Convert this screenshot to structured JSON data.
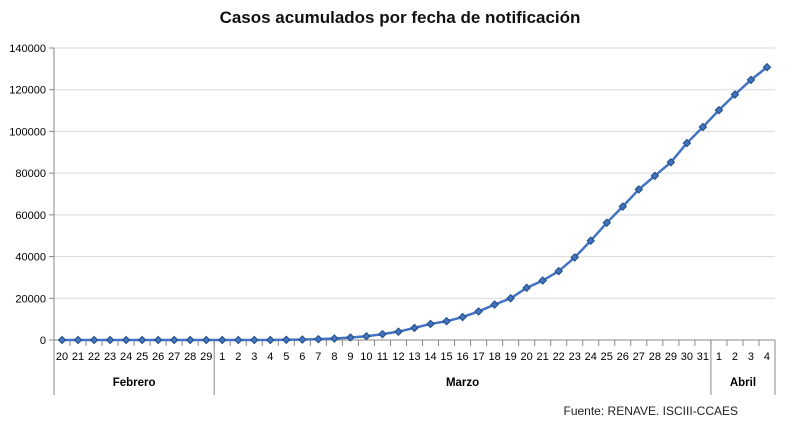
{
  "chart_data": {
    "type": "line",
    "title": "Casos acumulados por fecha de notificación",
    "source": "Fuente: RENAVE. ISCIII-CCAES",
    "categories": [
      "20",
      "21",
      "22",
      "23",
      "24",
      "25",
      "26",
      "27",
      "28",
      "29",
      "1",
      "2",
      "3",
      "4",
      "5",
      "6",
      "7",
      "8",
      "9",
      "10",
      "11",
      "12",
      "13",
      "14",
      "15",
      "16",
      "17",
      "18",
      "19",
      "20",
      "21",
      "22",
      "23",
      "24",
      "25",
      "26",
      "27",
      "28",
      "29",
      "30",
      "31",
      "1",
      "2",
      "3",
      "4"
    ],
    "months": [
      {
        "label": "Febrero",
        "start": 0,
        "end": 9
      },
      {
        "label": "Marzo",
        "start": 10,
        "end": 40
      },
      {
        "label": "Abril",
        "start": 41,
        "end": 44
      }
    ],
    "series": [
      {
        "color": "#4472C4",
        "marker_color": "#1F4E79",
        "values": [
          0,
          0,
          0,
          0,
          0,
          0,
          0,
          0,
          0,
          0,
          0,
          0,
          0,
          0,
          100,
          200,
          400,
          700,
          1200,
          1800,
          2800,
          4000,
          5800,
          7700,
          9000,
          11000,
          13700,
          17000,
          20000,
          25000,
          28500,
          33000,
          39600,
          47600,
          56200,
          64000,
          72200,
          78700,
          85200,
          94400,
          102100,
          110200,
          117700,
          124700,
          130800
        ]
      }
    ],
    "ylim": [
      0,
      140000
    ],
    "yticks": [
      0,
      20000,
      40000,
      60000,
      80000,
      100000,
      120000,
      140000
    ],
    "xlabel": "",
    "ylabel": "",
    "grid": true,
    "legend": "none"
  }
}
